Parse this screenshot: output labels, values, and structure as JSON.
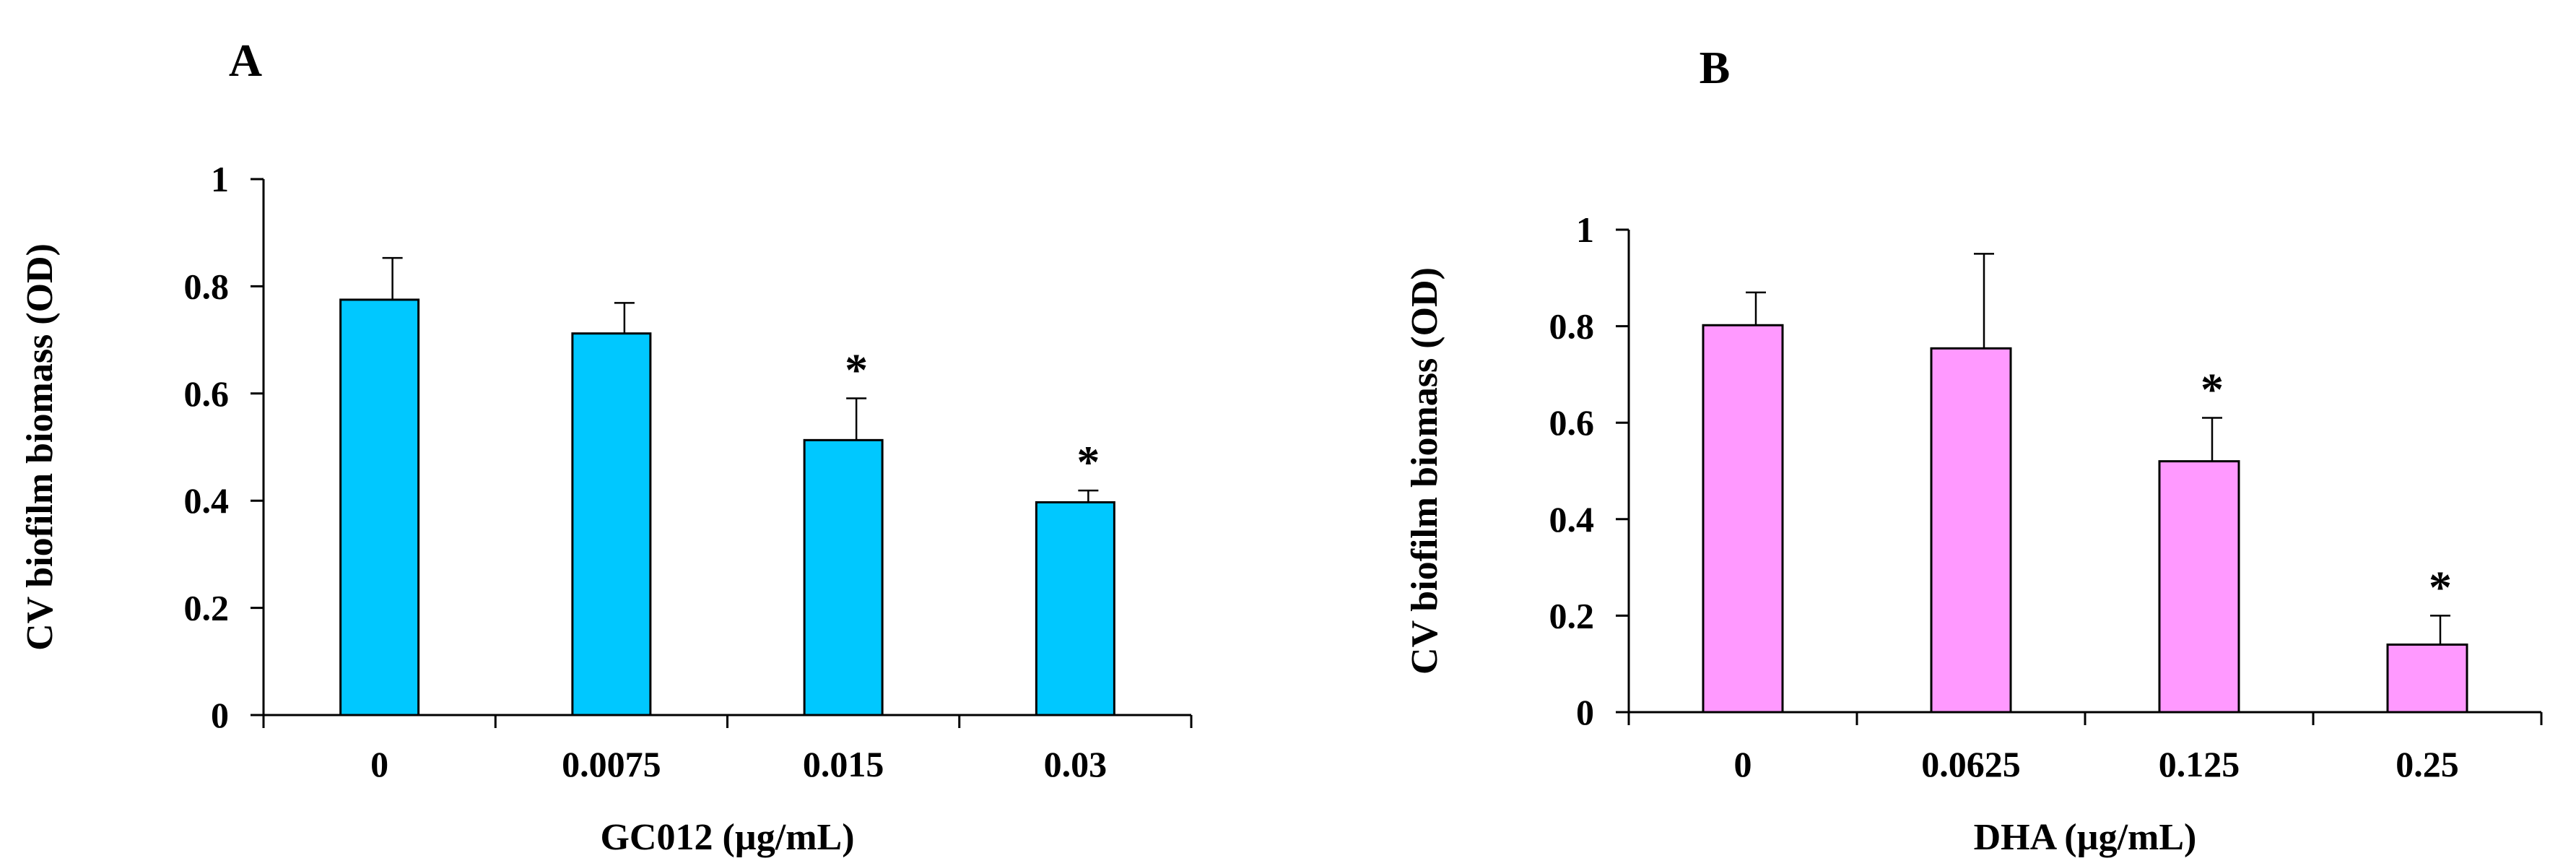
{
  "chart_data": [
    {
      "panel": "A",
      "type": "bar",
      "title": "",
      "xlabel": "GC012 (µg/mL)",
      "ylabel": "CV biofilm biomass (OD)",
      "categories": [
        "0",
        "0.0075",
        "0.015",
        "0.03"
      ],
      "values": [
        0.775,
        0.712,
        0.513,
        0.397
      ],
      "errors": [
        0.078,
        0.057,
        0.078,
        0.022
      ],
      "significance": [
        "",
        "",
        "*",
        "*"
      ],
      "ylim": [
        0,
        1
      ],
      "yticks": [
        0,
        0.2,
        0.4,
        0.6,
        0.8,
        1
      ],
      "ytick_labels": [
        "0",
        "0.2",
        "0.4",
        "0.6",
        "0.8",
        "1"
      ],
      "bar_color": "#00c8ff",
      "grid": false
    },
    {
      "panel": "B",
      "type": "bar",
      "title": "",
      "xlabel": "DHA (µg/mL)",
      "ylabel": "CV biofilm biomass (OD)",
      "categories": [
        "0",
        "0.0625",
        "0.125",
        "0.25"
      ],
      "values": [
        0.802,
        0.754,
        0.52,
        0.14
      ],
      "errors": [
        0.068,
        0.196,
        0.09,
        0.06
      ],
      "significance": [
        "",
        "",
        "*",
        "*"
      ],
      "ylim": [
        0,
        1
      ],
      "yticks": [
        0,
        0.2,
        0.4,
        0.6,
        0.8,
        1
      ],
      "ytick_labels": [
        "0",
        "0.2",
        "0.4",
        "0.6",
        "0.8",
        "1"
      ],
      "bar_color": "#ff99ff",
      "grid": false
    }
  ]
}
